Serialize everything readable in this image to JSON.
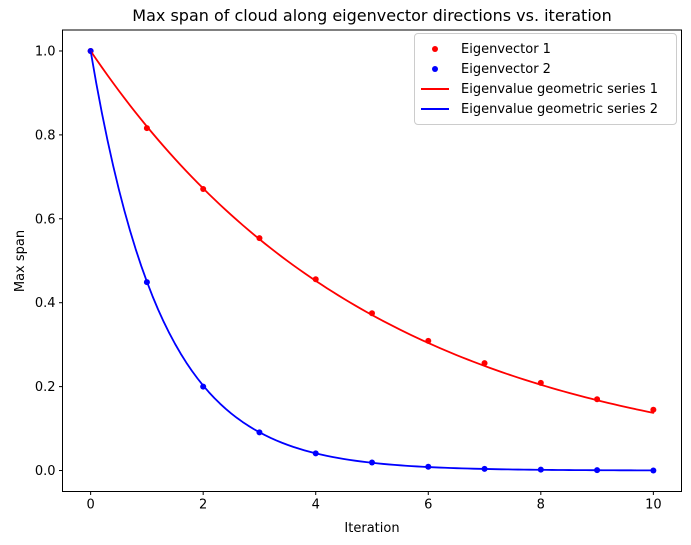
{
  "figure": {
    "background": "#ffffff"
  },
  "chart_data": {
    "type": "line",
    "title": "Max span of cloud along eigenvector directions vs. iteration",
    "xlabel": "Iteration",
    "ylabel": "Max span",
    "xlim": [
      -0.5,
      10.5
    ],
    "ylim": [
      -0.05,
      1.05
    ],
    "xticks": [
      0,
      2,
      4,
      6,
      8,
      10
    ],
    "xtick_labels": [
      "0",
      "2",
      "4",
      "6",
      "8",
      "10"
    ],
    "yticks": [
      0.0,
      0.2,
      0.4,
      0.6,
      0.8,
      1.0
    ],
    "ytick_labels": [
      "0.0",
      "0.2",
      "0.4",
      "0.6",
      "0.8",
      "1.0"
    ],
    "grid": false,
    "legend_position": "upper right",
    "x": [
      0,
      1,
      2,
      3,
      4,
      5,
      6,
      7,
      8,
      9,
      10
    ],
    "series": [
      {
        "name": "Eigenvector 1",
        "type": "scatter",
        "color": "#ff0000",
        "marker": "dot",
        "values": [
          1.0,
          0.816,
          0.671,
          0.554,
          0.456,
          0.375,
          0.309,
          0.256,
          0.209,
          0.17,
          0.145
        ]
      },
      {
        "name": "Eigenvector 2",
        "type": "scatter",
        "color": "#0000ff",
        "marker": "dot",
        "values": [
          1.0,
          0.449,
          0.2,
          0.091,
          0.041,
          0.019,
          0.009,
          0.004,
          0.002,
          0.001,
          0.0
        ]
      },
      {
        "name": "Eigenvalue geometric series 1",
        "type": "line",
        "color": "#ff0000",
        "ratio": 0.82,
        "values": [
          1.0,
          0.82,
          0.672,
          0.551,
          0.452,
          0.371,
          0.304,
          0.249,
          0.204,
          0.168,
          0.137
        ]
      },
      {
        "name": "Eigenvalue geometric series 2",
        "type": "line",
        "color": "#0000ff",
        "ratio": 0.45,
        "values": [
          1.0,
          0.45,
          0.203,
          0.091,
          0.041,
          0.018,
          0.008,
          0.004,
          0.002,
          0.001,
          0.0
        ]
      }
    ]
  }
}
